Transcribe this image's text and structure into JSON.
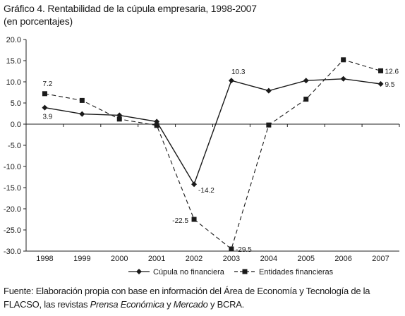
{
  "chart_data": {
    "type": "line",
    "title": "Gráfico 4. Rentabilidad de la cúpula empresaria, 1998-2007",
    "subtitle": "(en porcentajes)",
    "categories": [
      "1998",
      "1999",
      "2000",
      "2001",
      "2002",
      "2003",
      "2004",
      "2005",
      "2006",
      "2007"
    ],
    "ylim": [
      -30,
      20
    ],
    "yticks": [
      "20.0",
      "15.0",
      "10.0",
      "5.0",
      "0.0",
      "-5.0",
      "-10.0",
      "-15.0",
      "-20.0",
      "-25.0",
      "-30.0"
    ],
    "grid": false,
    "legend_position": "bottom",
    "series": [
      {
        "name": "Cúpula no financiera",
        "marker": "diamond",
        "line_style": "solid",
        "values": [
          3.9,
          2.4,
          2.1,
          0.6,
          -14.2,
          10.3,
          7.9,
          10.3,
          10.7,
          9.5
        ],
        "labels": [
          "3.9",
          "",
          "",
          "",
          "-14.2",
          "10.3",
          "",
          "",
          "",
          "9.5"
        ]
      },
      {
        "name": "Entidades financieras",
        "marker": "square",
        "line_style": "dashed",
        "values": [
          7.2,
          5.6,
          1.2,
          -0.3,
          -22.5,
          -29.5,
          -0.2,
          5.9,
          15.2,
          12.6
        ],
        "labels": [
          "7.2",
          "",
          "",
          "",
          "-22.5",
          "-29.5",
          "",
          "",
          "",
          "12.6"
        ]
      }
    ]
  },
  "source": {
    "prefix": "Fuente: Elaboración propia con base en información del Área de Economía y Tecnología de la FLACSO, las revistas",
    "italic1": "Prensa Económica",
    "conj1": " y ",
    "italic2": "Mercado",
    "conj2": " y ",
    "tail": "BCRA."
  }
}
